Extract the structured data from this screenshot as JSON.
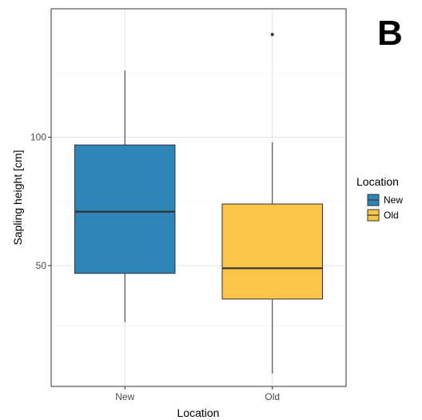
{
  "panel_label": "B",
  "chart_data": {
    "type": "boxplot",
    "xlabel": "Location",
    "ylabel": "Sapling height [cm]",
    "categories": [
      "New",
      "Old"
    ],
    "ylim": [
      3,
      150
    ],
    "yticks": [
      50,
      100
    ],
    "grid": true,
    "legend": {
      "title": "Location",
      "position": "right",
      "entries": [
        {
          "label": "New",
          "color": "#2E86B8"
        },
        {
          "label": "Old",
          "color": "#FBC547"
        }
      ]
    },
    "boxes": [
      {
        "category": "New",
        "whisker_low": 28,
        "q1": 47,
        "median": 71,
        "q3": 97,
        "whisker_high": 126,
        "outliers": [],
        "color": "#2E86B8"
      },
      {
        "category": "Old",
        "whisker_low": 8,
        "q1": 37,
        "median": 49,
        "q3": 74,
        "whisker_high": 98,
        "outliers": [
          140
        ],
        "color": "#FBC547"
      }
    ]
  }
}
